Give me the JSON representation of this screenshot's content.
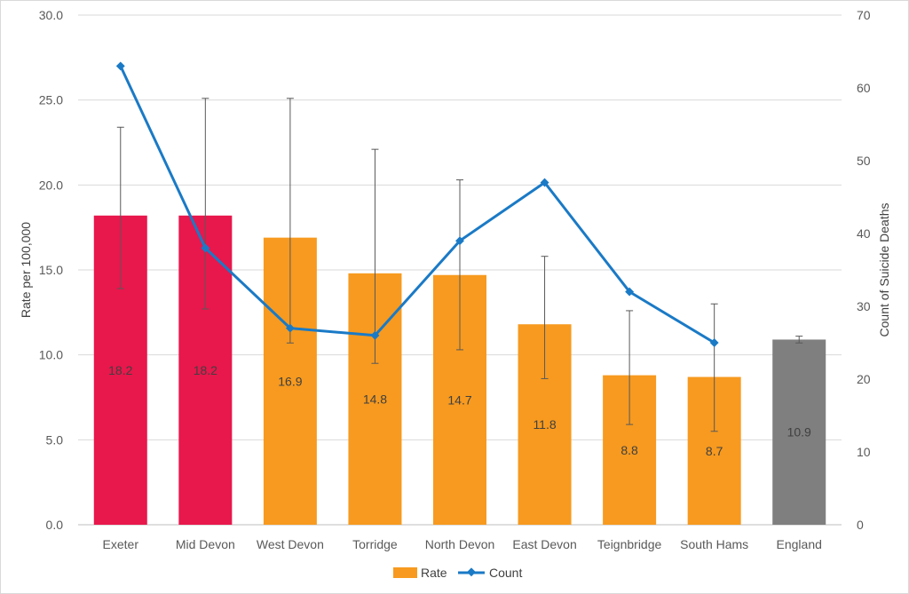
{
  "chart_data": {
    "type": "bar",
    "categories": [
      "Exeter",
      "Mid Devon",
      "West Devon",
      "Torridge",
      "North Devon",
      "East Devon",
      "Teignbridge",
      "South Hams",
      "England"
    ],
    "series": [
      {
        "name": "Rate",
        "type": "bar",
        "axis": "left",
        "values": [
          18.2,
          18.2,
          16.9,
          14.8,
          14.7,
          11.8,
          8.8,
          8.7,
          10.9
        ],
        "data_labels": [
          "18.2",
          "18.2",
          "16.9",
          "14.8",
          "14.7",
          "11.8",
          "8.8",
          "8.7",
          "10.9"
        ],
        "error_low": [
          13.9,
          12.7,
          10.7,
          9.5,
          10.3,
          8.6,
          5.9,
          5.5,
          10.7
        ],
        "error_high": [
          23.4,
          25.1,
          25.1,
          22.1,
          20.3,
          15.8,
          12.6,
          13.0,
          11.1
        ],
        "bar_colors": [
          "#e8174c",
          "#e8174c",
          "#f79a1f",
          "#f79a1f",
          "#f79a1f",
          "#f79a1f",
          "#f79a1f",
          "#f79a1f",
          "#7f7f7f"
        ]
      },
      {
        "name": "Count",
        "type": "line",
        "axis": "right",
        "values": [
          63,
          38,
          27,
          26,
          39,
          47,
          32,
          25,
          null
        ],
        "color": "#1a7ac6"
      }
    ],
    "ylabel": "Rate per 100,000",
    "y2label": "Count of Suicide Deaths",
    "ylim": [
      0,
      30
    ],
    "y2lim": [
      0,
      70
    ],
    "yticks": [
      "0.0",
      "5.0",
      "10.0",
      "15.0",
      "20.0",
      "25.0",
      "30.0"
    ],
    "y2ticks": [
      "0",
      "10",
      "20",
      "30",
      "40",
      "50",
      "60",
      "70"
    ],
    "grid": true,
    "legend": {
      "placement": "bottom",
      "items": [
        {
          "label": "Rate",
          "color": "#f79a1f",
          "marker": "square"
        },
        {
          "label": "Count",
          "color": "#1a7ac6",
          "marker": "line-diamond"
        }
      ]
    }
  }
}
